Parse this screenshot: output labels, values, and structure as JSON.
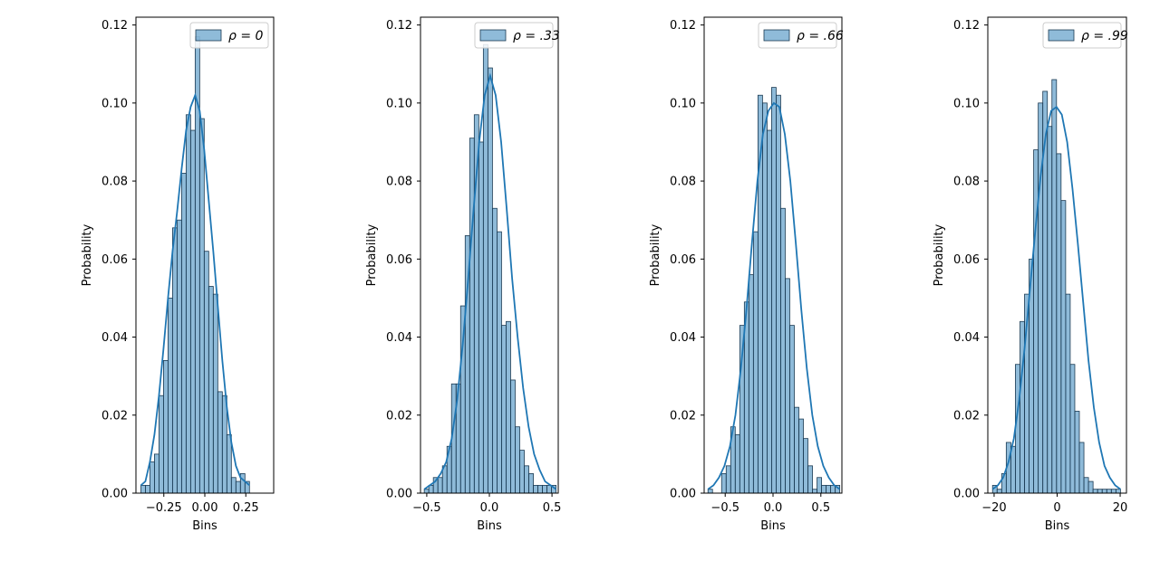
{
  "colors": {
    "bar_fill": "#1f77b4",
    "bar_alpha": 0.5,
    "bar_edge": "#1b3a52",
    "kde_line": "#1f77b4"
  },
  "chart_data": [
    {
      "type": "bar",
      "subtype": "histogram-with-kde",
      "legend": "ρ = 0",
      "legend_position": "top-right",
      "xlabel": "Bins",
      "ylabel": "Probability",
      "xlim": [
        -0.42,
        0.42
      ],
      "ylim": [
        0,
        0.122
      ],
      "xticks": [
        -0.25,
        0.0,
        0.25
      ],
      "xtick_labels": [
        "−0.25",
        "0.00",
        "0.25"
      ],
      "yticks": [
        0.0,
        0.02,
        0.04,
        0.06,
        0.08,
        0.1,
        0.12
      ],
      "ytick_labels": [
        "0.00",
        "0.02",
        "0.04",
        "0.06",
        "0.08",
        "0.10",
        "0.12"
      ],
      "bin_start": -0.39,
      "bin_width": 0.0276,
      "values": [
        0.002,
        0.002,
        0.008,
        0.01,
        0.025,
        0.034,
        0.05,
        0.068,
        0.07,
        0.082,
        0.097,
        0.093,
        0.117,
        0.096,
        0.062,
        0.053,
        0.051,
        0.026,
        0.025,
        0.015,
        0.004,
        0.003,
        0.005,
        0.003
      ],
      "kde": [
        0.002,
        0.003,
        0.008,
        0.015,
        0.025,
        0.037,
        0.05,
        0.062,
        0.072,
        0.083,
        0.093,
        0.099,
        0.102,
        0.098,
        0.088,
        0.075,
        0.062,
        0.048,
        0.034,
        0.022,
        0.013,
        0.007,
        0.004,
        0.003,
        0.002
      ]
    },
    {
      "type": "bar",
      "subtype": "histogram-with-kde",
      "legend": "ρ = .33",
      "legend_position": "top-right",
      "xlabel": "Bins",
      "ylabel": "Probability",
      "xlim": [
        -0.55,
        0.55
      ],
      "ylim": [
        0,
        0.122
      ],
      "xticks": [
        -0.5,
        0.0,
        0.5
      ],
      "xtick_labels": [
        "−0.5",
        "0.0",
        "0.5"
      ],
      "yticks": [
        0.0,
        0.02,
        0.04,
        0.06,
        0.08,
        0.1,
        0.12
      ],
      "ytick_labels": [
        "0.00",
        "0.02",
        "0.04",
        "0.06",
        "0.08",
        "0.10",
        "0.12"
      ],
      "bin_start": -0.52,
      "bin_width": 0.0363,
      "values": [
        0.001,
        0.002,
        0.004,
        0.004,
        0.007,
        0.012,
        0.028,
        0.028,
        0.048,
        0.066,
        0.091,
        0.097,
        0.09,
        0.115,
        0.109,
        0.073,
        0.067,
        0.043,
        0.044,
        0.029,
        0.017,
        0.011,
        0.007,
        0.005,
        0.002,
        0.002,
        0.002,
        0.002,
        0.002
      ],
      "kde": [
        0.001,
        0.002,
        0.003,
        0.005,
        0.008,
        0.014,
        0.024,
        0.038,
        0.055,
        0.073,
        0.09,
        0.102,
        0.107,
        0.102,
        0.09,
        0.073,
        0.055,
        0.04,
        0.027,
        0.017,
        0.01,
        0.006,
        0.003,
        0.002,
        0.001
      ]
    },
    {
      "type": "bar",
      "subtype": "histogram-with-kde",
      "legend": "ρ = .66",
      "legend_position": "top-right",
      "xlabel": "Bins",
      "ylabel": "Probability",
      "xlim": [
        -0.72,
        0.72
      ],
      "ylim": [
        0,
        0.122
      ],
      "xticks": [
        -0.5,
        0.0,
        0.5
      ],
      "xtick_labels": [
        "−0.5",
        "0.0",
        "0.5"
      ],
      "yticks": [
        0.0,
        0.02,
        0.04,
        0.06,
        0.08,
        0.1,
        0.12
      ],
      "ytick_labels": [
        "0.00",
        "0.02",
        "0.04",
        "0.06",
        "0.08",
        "0.10",
        "0.12"
      ],
      "bin_start": -0.68,
      "bin_width": 0.0475,
      "values": [
        0.001,
        0.0,
        0.0,
        0.005,
        0.007,
        0.017,
        0.015,
        0.043,
        0.049,
        0.056,
        0.067,
        0.102,
        0.1,
        0.093,
        0.104,
        0.102,
        0.073,
        0.055,
        0.043,
        0.022,
        0.019,
        0.014,
        0.007,
        0.001,
        0.004,
        0.002,
        0.002,
        0.002,
        0.002
      ],
      "kde": [
        0.001,
        0.002,
        0.004,
        0.007,
        0.012,
        0.02,
        0.032,
        0.047,
        0.064,
        0.08,
        0.092,
        0.098,
        0.1,
        0.099,
        0.092,
        0.08,
        0.064,
        0.047,
        0.032,
        0.02,
        0.012,
        0.007,
        0.004,
        0.002,
        0.001
      ]
    },
    {
      "type": "bar",
      "subtype": "histogram-with-kde",
      "legend": "ρ = .99",
      "legend_position": "top-right",
      "xlabel": "Bins",
      "ylabel": "Probability",
      "xlim": [
        -22,
        22
      ],
      "ylim": [
        0,
        0.122
      ],
      "xticks": [
        -20,
        0,
        20
      ],
      "xtick_labels": [
        "−20",
        "0",
        "20"
      ],
      "yticks": [
        0.0,
        0.02,
        0.04,
        0.06,
        0.08,
        0.1,
        0.12
      ],
      "ytick_labels": [
        "0.00",
        "0.02",
        "0.04",
        "0.06",
        "0.08",
        "0.10",
        "0.12"
      ],
      "bin_start": -20.5,
      "bin_width": 1.45,
      "values": [
        0.002,
        0.001,
        0.005,
        0.013,
        0.012,
        0.033,
        0.044,
        0.051,
        0.06,
        0.088,
        0.1,
        0.103,
        0.094,
        0.106,
        0.087,
        0.075,
        0.051,
        0.033,
        0.021,
        0.013,
        0.004,
        0.003,
        0.001,
        0.001,
        0.001,
        0.001,
        0.001,
        0.001
      ],
      "kde": [
        0.001,
        0.002,
        0.004,
        0.008,
        0.014,
        0.024,
        0.037,
        0.052,
        0.067,
        0.081,
        0.092,
        0.098,
        0.099,
        0.097,
        0.09,
        0.078,
        0.064,
        0.049,
        0.034,
        0.022,
        0.013,
        0.007,
        0.004,
        0.002,
        0.001
      ]
    }
  ]
}
